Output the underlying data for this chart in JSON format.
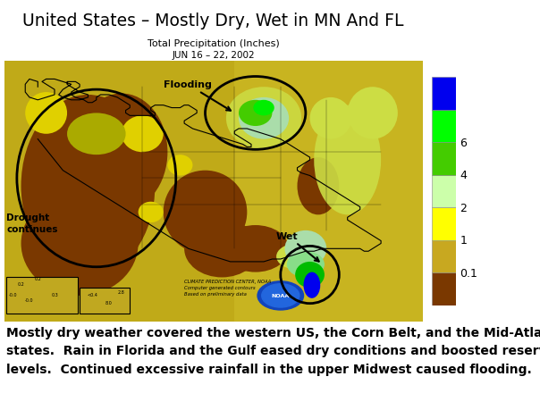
{
  "title": "United States – Mostly Dry, Wet in MN And FL",
  "subtitle": "Total Precipitation (Inches)",
  "date_label": "JUN 16 – 22, 2002",
  "annotation_flooding": "Flooding",
  "annotation_drought": "Drought\ncontinues",
  "annotation_wet": "Wet",
  "colorbar_colors_top_to_bot": [
    "#0000ee",
    "#00dd00",
    "#00ff00",
    "#99ffaa",
    "#ccff88",
    "#ffff00",
    "#ddcc00",
    "#8B5010"
  ],
  "colorbar_labels": [
    [
      "6",
      0.857
    ],
    [
      "4",
      0.714
    ],
    [
      "2",
      0.571
    ],
    [
      "1",
      0.428
    ],
    [
      "0.1",
      0.285
    ]
  ],
  "source_text": "CLIMATE PREDICTION CENTER, NOAA\nComputer generated contours\nBased on preliminary data",
  "body_text": "Mostly dry weather covered the western US, the Corn Belt, and the Mid-Atlantic\nstates.  Rain in Florida and the Gulf eased dry conditions and boosted reservoir\nlevels.  Continued excessive rainfall in the upper Midwest caused flooding.",
  "bg_color": "#ffffff",
  "title_fontsize": 13.5,
  "subtitle_fontsize": 8,
  "body_fontsize": 10,
  "map_bg": "#c8a832",
  "brown_color": "#7a3800",
  "yellow_color": "#e8e000",
  "olive_color": "#b09000",
  "lt_green_color": "#aaddaa",
  "green_color": "#33cc33",
  "blue_color": "#0000ee"
}
